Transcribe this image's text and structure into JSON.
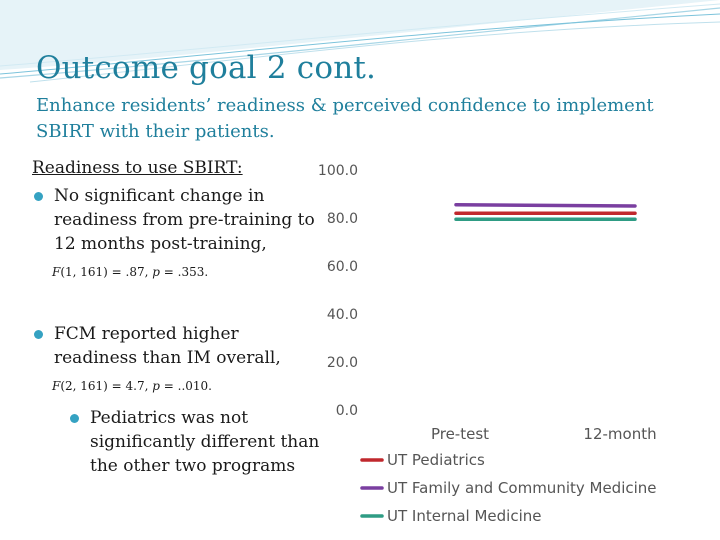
{
  "slide": {
    "title": "Outcome goal 2 cont.",
    "subtitle": "Enhance residents’ readiness & perceived confidence to implement SBIRT with their patients."
  },
  "content": {
    "heading": "Readiness to use SBIRT:",
    "bullet1": "No significant change in readiness from pre-training to 12 months post-training,",
    "stat1": {
      "f_prefix": "F",
      "f_args": "(1, 161) = .87, ",
      "p_prefix": "p",
      "p_value": " = .353."
    },
    "bullet2": "FCM reported higher readiness than IM overall,",
    "stat2": {
      "f_prefix": "F",
      "f_args": "(2, 161) = 4.7, ",
      "p_prefix": "p",
      "p_value": " = ..010."
    },
    "subbullet": "Pediatrics was not significantly different than the other two programs"
  },
  "chart_data": {
    "type": "line",
    "categories": [
      "Pre-test",
      "12-month"
    ],
    "series": [
      {
        "name": "UT Pediatrics",
        "values": [
          82.0,
          82.0
        ],
        "color": "#c0282d"
      },
      {
        "name": "UT Family and Community Medicine",
        "values": [
          85.5,
          85.0
        ],
        "color": "#7a3fa0"
      },
      {
        "name": "UT Internal Medicine",
        "values": [
          79.5,
          79.5
        ],
        "color": "#2e9c84"
      }
    ],
    "yticks": [
      "0.0",
      "20.0",
      "40.0",
      "60.0",
      "80.0",
      "100.0"
    ],
    "ylim": [
      0,
      100
    ],
    "grid": false,
    "legend_position": "bottom"
  }
}
